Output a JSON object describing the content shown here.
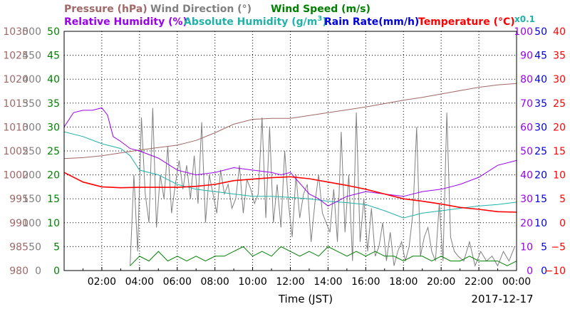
{
  "chart_data": {
    "type": "line",
    "date": "2017-12-17",
    "xlabel": "Time (JST)",
    "x_ticks": [
      "02:00",
      "04:00",
      "06:00",
      "08:00",
      "10:00",
      "12:00",
      "14:00",
      "16:00",
      "18:00",
      "20:00",
      "22:00",
      "00:00"
    ],
    "xlim": [
      "00:00",
      "24:00"
    ],
    "legend_top": [
      {
        "label": "Pressure (hPa)",
        "color": "#a06868"
      },
      {
        "label": "Wind Direction (°)",
        "color": "#808080"
      },
      {
        "label": "Wind Speed (m/s)",
        "color": "#008000"
      }
    ],
    "legend_second": [
      {
        "label": "Relative Humidity (%)",
        "color": "#9900ee"
      },
      {
        "label": "Absolute Humidity (g/m",
        "sup": "3",
        "close": ")",
        "color": "#20b2aa"
      },
      {
        "label": "Rain Rate(mm/h)",
        "color": "#0000dd"
      },
      {
        "label": "Temperature (°C)",
        "color": "#ff0000"
      }
    ],
    "abs_multiplier": "x0.1",
    "left_axes": [
      {
        "name": "pressure",
        "color": "#a06868",
        "ticks": [
          "1030",
          "1025",
          "1020",
          "1015",
          "1010",
          "1005",
          "1000",
          "995",
          "990",
          "985",
          "980"
        ],
        "ylim": [
          980,
          1030
        ]
      },
      {
        "name": "wind_direction",
        "color": "#808080",
        "ticks": [
          "500",
          "450",
          "400",
          "350",
          "300",
          "250",
          "200",
          "150",
          "100",
          "50",
          "0"
        ],
        "ylim": [
          0,
          500
        ]
      },
      {
        "name": "wind_speed",
        "color": "#008000",
        "ticks": [
          "50",
          "45",
          "40",
          "35",
          "30",
          "25",
          "20",
          "15",
          "10",
          "5",
          "0"
        ],
        "ylim": [
          0,
          50
        ]
      }
    ],
    "right_axes": [
      {
        "name": "relative_humidity",
        "color": "#9900ee",
        "ticks": [
          "100",
          "90",
          "80",
          "70",
          "60",
          "50",
          "40",
          "30",
          "20",
          "10",
          "0"
        ],
        "ylim": [
          0,
          100
        ]
      },
      {
        "name": "rain_rate",
        "color": "#0000dd",
        "ticks": [
          "50",
          "45",
          "40",
          "35",
          "30",
          "25",
          "20",
          "15",
          "10",
          "5",
          "0"
        ],
        "ylim": [
          0,
          50
        ]
      },
      {
        "name": "temperature",
        "color": "#ff0000",
        "ticks": [
          "40",
          "35",
          "30",
          "25",
          "20",
          "15",
          "10",
          "5",
          "0",
          "−5",
          "−10"
        ],
        "ylim": [
          -10,
          40
        ]
      }
    ],
    "series": [
      {
        "name": "Pressure (hPa)",
        "axis": "pressure",
        "color": "#a06868",
        "x": [
          0,
          1,
          2,
          3,
          4,
          5,
          6,
          7,
          8,
          9,
          10,
          11,
          12,
          13,
          14,
          15,
          16,
          17,
          18,
          19,
          20,
          21,
          22,
          23,
          24
        ],
        "y": [
          1003.4,
          1003.6,
          1004.0,
          1004.6,
          1005.2,
          1005.7,
          1006.2,
          1007.2,
          1008.8,
          1010.6,
          1011.6,
          1011.8,
          1011.8,
          1012.4,
          1013.0,
          1013.6,
          1014.2,
          1014.9,
          1015.6,
          1016.2,
          1016.9,
          1017.6,
          1018.3,
          1018.8,
          1019.1
        ]
      },
      {
        "name": "Relative Humidity (%)",
        "axis": "relative_humidity",
        "color": "#9900ee",
        "x": [
          0,
          0.5,
          1,
          1.5,
          2,
          2.3,
          2.6,
          3,
          3.5,
          4,
          5,
          6,
          7,
          8,
          9,
          10,
          11,
          11.5,
          12,
          13,
          13.5,
          14,
          15,
          16,
          17,
          18,
          19,
          20,
          21,
          22,
          23,
          24
        ],
        "y": [
          60,
          66,
          67,
          67,
          68,
          65,
          56,
          54,
          51,
          50,
          47,
          42,
          40,
          41,
          43,
          42,
          41,
          40,
          41,
          32,
          30,
          27,
          31,
          33,
          32,
          31,
          33,
          34,
          36,
          39,
          44,
          46
        ]
      },
      {
        "name": "Absolute Humidity (g/m3)",
        "axis": "rain_rate",
        "color": "#20b2aa",
        "x": [
          0,
          1,
          2,
          3,
          3.5,
          4,
          5,
          6,
          7,
          8,
          9,
          10,
          11,
          12,
          13,
          14,
          15,
          16,
          17,
          18,
          19,
          20,
          21,
          22,
          23,
          24
        ],
        "y": [
          29,
          28,
          26.5,
          25.5,
          24,
          21,
          20,
          18,
          17,
          16.5,
          16,
          15.5,
          15.5,
          15.3,
          15,
          14.5,
          14.2,
          13.8,
          12.5,
          11,
          12,
          12.5,
          13,
          13.5,
          13.8,
          14.3
        ]
      },
      {
        "name": "Temperature (°C)",
        "axis": "temperature",
        "color": "#ff0000",
        "x": [
          0,
          1,
          2,
          3,
          4,
          5,
          6,
          7,
          8,
          9,
          10,
          11,
          12,
          13,
          14,
          15,
          16,
          17,
          18,
          19,
          20,
          21,
          22,
          23,
          24
        ],
        "y": [
          10.5,
          8.5,
          7.5,
          7.3,
          7.4,
          7.4,
          7.4,
          7.6,
          8.0,
          8.8,
          9.1,
          9.4,
          9.6,
          9.2,
          8.5,
          7.8,
          7.0,
          6.0,
          5.0,
          4.5,
          3.9,
          3.2,
          2.8,
          2.3,
          2.2
        ]
      },
      {
        "name": "Wind Direction (°)",
        "axis": "wind_direction",
        "color": "#808080",
        "x": [
          3.5,
          3.7,
          3.9,
          4.1,
          4.3,
          4.5,
          4.7,
          4.9,
          5.1,
          5.3,
          5.5,
          5.7,
          5.9,
          6.1,
          6.3,
          6.5,
          6.7,
          6.9,
          7.1,
          7.3,
          7.5,
          7.7,
          7.9,
          8.1,
          8.3,
          8.5,
          8.7,
          8.9,
          9.1,
          9.3,
          9.5,
          9.7,
          9.9,
          10.1,
          10.3,
          10.5,
          10.7,
          10.9,
          11.1,
          11.3,
          11.5,
          11.7,
          11.9,
          12.1,
          12.3,
          12.5,
          12.7,
          12.9,
          13.1,
          13.3,
          13.5,
          13.7,
          13.9,
          14.1,
          14.3,
          14.5,
          14.7,
          14.9,
          15.1,
          15.3,
          15.5,
          15.7,
          15.9,
          16.1,
          16.3,
          16.5,
          16.7,
          16.9,
          17.1,
          17.3,
          17.5,
          17.7,
          17.9,
          18.1,
          18.3,
          18.5,
          18.7,
          18.9,
          19.1,
          19.3,
          19.5,
          19.7,
          19.9,
          20.1,
          20.3,
          20.5,
          20.7,
          20.9,
          21.2,
          21.5,
          21.8,
          22.1,
          22.4,
          22.7,
          23.0,
          23.3,
          23.6,
          23.9
        ],
        "y": [
          10,
          200,
          40,
          320,
          160,
          100,
          340,
          90,
          200,
          150,
          260,
          120,
          180,
          230,
          170,
          220,
          150,
          240,
          140,
          310,
          100,
          200,
          160,
          120,
          210,
          160,
          180,
          130,
          150,
          220,
          120,
          190,
          170,
          140,
          160,
          320,
          110,
          300,
          100,
          180,
          90,
          250,
          140,
          70,
          200,
          110,
          160,
          180,
          60,
          140,
          200,
          120,
          100,
          80,
          170,
          60,
          290,
          80,
          200,
          20,
          330,
          60,
          150,
          40,
          130,
          30,
          50,
          100,
          20,
          80,
          10,
          40,
          60,
          20,
          50,
          120,
          300,
          30,
          70,
          90,
          40,
          20,
          140,
          20,
          330,
          70,
          40,
          30,
          20,
          60,
          10,
          40,
          20,
          30,
          10,
          40,
          20,
          50
        ]
      },
      {
        "name": "Wind Speed (m/s)",
        "axis": "wind_speed",
        "color": "#008000",
        "x": [
          3.5,
          4,
          4.5,
          5,
          5.5,
          6,
          6.5,
          7,
          7.5,
          8,
          8.5,
          9,
          9.5,
          10,
          10.5,
          11,
          11.5,
          12,
          12.5,
          13,
          13.5,
          14,
          14.5,
          15,
          15.5,
          16,
          16.5,
          17,
          17.5,
          18,
          18.5,
          19,
          19.5,
          20,
          20.5,
          21,
          21.5,
          22,
          22.5,
          23,
          23.5,
          24
        ],
        "y": [
          1,
          3,
          2,
          4,
          2,
          3,
          2,
          3,
          2,
          3,
          3,
          4,
          5,
          3,
          4,
          3,
          5,
          4,
          3,
          4,
          3,
          5,
          4,
          3,
          4,
          3,
          4,
          3,
          3,
          2,
          3,
          3,
          2,
          3,
          2,
          2,
          3,
          2,
          2,
          2,
          1,
          2
        ]
      },
      {
        "name": "Rain Rate(mm/h)",
        "axis": "rain_rate",
        "color": "#0000dd",
        "x": [
          0,
          24
        ],
        "y": [
          0,
          0
        ]
      }
    ]
  }
}
